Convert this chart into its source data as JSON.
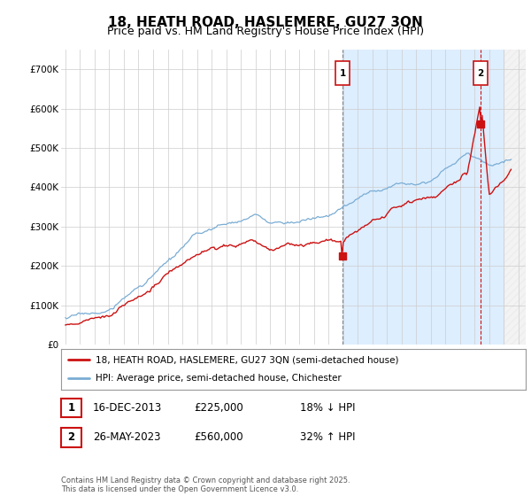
{
  "title": "18, HEATH ROAD, HASLEMERE, GU27 3QN",
  "subtitle": "Price paid vs. HM Land Registry's House Price Index (HPI)",
  "ylim": [
    0,
    750000
  ],
  "yticks": [
    0,
    100000,
    200000,
    300000,
    400000,
    500000,
    600000,
    700000
  ],
  "ytick_labels": [
    "£0",
    "£100K",
    "£200K",
    "£300K",
    "£400K",
    "£500K",
    "£600K",
    "£700K"
  ],
  "xlim_start": 1994.7,
  "xlim_end": 2026.5,
  "background_color": "#ffffff",
  "plot_bg_color": "#ffffff",
  "shade_color": "#ddeeff",
  "grid_color": "#cccccc",
  "hpi_color": "#7aadd4",
  "price_color": "#cc1111",
  "marker1_x": 2013.96,
  "marker1_y": 225000,
  "marker2_x": 2023.4,
  "marker2_y": 560000,
  "legend_line1": "18, HEATH ROAD, HASLEMERE, GU27 3QN (semi-detached house)",
  "legend_line2": "HPI: Average price, semi-detached house, Chichester",
  "table_row1": [
    "1",
    "16-DEC-2013",
    "£225,000",
    "18% ↓ HPI"
  ],
  "table_row2": [
    "2",
    "26-MAY-2023",
    "£560,000",
    "32% ↑ HPI"
  ],
  "footnote": "Contains HM Land Registry data © Crown copyright and database right 2025.\nThis data is licensed under the Open Government Licence v3.0.",
  "title_fontsize": 11,
  "subtitle_fontsize": 9,
  "tick_fontsize": 7.5
}
